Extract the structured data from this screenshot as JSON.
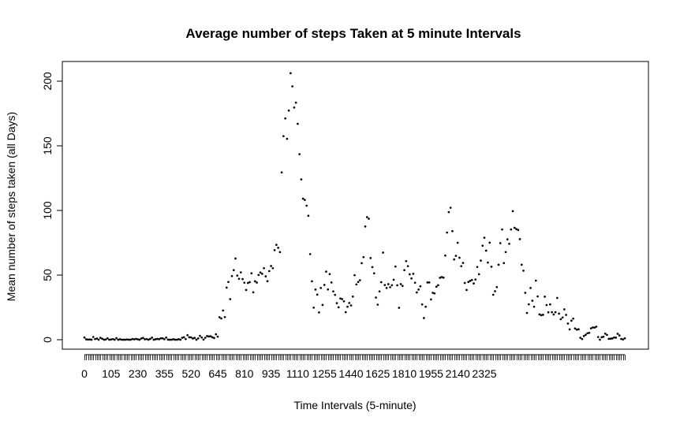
{
  "chart_data": {
    "type": "scatter",
    "title": "Average number of steps Taken at 5 minute Intervals",
    "xlabel": "Time Intervals (5-minute)",
    "ylabel": "Mean number of steps taken (all Days)",
    "x_ticks": [
      "0",
      "105",
      "230",
      "355",
      "520",
      "645",
      "810",
      "935",
      "1110",
      "1255",
      "1440",
      "1625",
      "1810",
      "1955",
      "2140",
      "2325"
    ],
    "y_ticks": [
      0,
      50,
      100,
      150,
      200
    ],
    "ylim": [
      0,
      210
    ],
    "grid": false,
    "legend": "none",
    "marker_color": "#000000",
    "values": [
      1.7,
      0.3,
      0.1,
      0.2,
      0.0,
      2.1,
      0.5,
      0.9,
      0.0,
      1.5,
      0.8,
      0.0,
      0.2,
      1.1,
      0.0,
      0.2,
      0.5,
      0.0,
      1.2,
      0.0,
      0.4,
      0.0,
      0.0,
      0.0,
      0.2,
      0.0,
      0.0,
      0.5,
      0.3,
      0.6,
      0.3,
      0.0,
      0.9,
      1.4,
      0.3,
      0.5,
      0.0,
      0.6,
      1.6,
      0.0,
      0.3,
      0.6,
      0.4,
      1.1,
      1.1,
      0.4,
      1.7,
      0.1,
      0.0,
      0.0,
      0.4,
      0.0,
      0.0,
      0.4,
      0.0,
      1.5,
      1.9,
      0.5,
      3.5,
      1.9,
      1.8,
      0.9,
      1.4,
      0.0,
      1.0,
      3.0,
      1.7,
      0.1,
      1.5,
      2.8,
      2.5,
      2.7,
      1.9,
      1.3,
      4.2,
      2.4,
      17.4,
      16.5,
      22.6,
      17.5,
      40.3,
      44.7,
      31.4,
      49.2,
      53.8,
      62.8,
      49.6,
      47.1,
      52.1,
      46.9,
      44.1,
      38.5,
      43.9,
      44.5,
      51.4,
      36.7,
      45.2,
      44.2,
      50.1,
      52.0,
      51.0,
      55.3,
      49.0,
      45.3,
      53.1,
      57.0,
      55.3,
      69.3,
      73.4,
      71.1,
      67.8,
      129.4,
      157.5,
      171.2,
      155.4,
      177.3,
      206.2,
      196.0,
      179.6,
      183.4,
      167.0,
      143.5,
      124.0,
      109.1,
      108.1,
      103.7,
      95.9,
      66.2,
      45.2,
      24.8,
      38.8,
      34.9,
      21.1,
      40.0,
      26.9,
      42.4,
      52.7,
      38.9,
      50.8,
      44.3,
      37.4,
      34.7,
      28.3,
      25.1,
      31.9,
      31.4,
      29.7,
      21.3,
      25.5,
      28.4,
      26.5,
      33.4,
      49.9,
      42.8,
      44.7,
      46.0,
      59.2,
      63.9,
      87.6,
      94.8,
      93.6,
      63.2,
      56.2,
      51.4,
      32.6,
      27.1,
      37.4,
      44.5,
      67.4,
      42.3,
      40.0,
      43.0,
      40.6,
      42.2,
      46.4,
      56.6,
      42.1,
      24.7,
      43.0,
      41.6,
      53.8,
      60.8,
      56.9,
      50.6,
      47.4,
      51.0,
      44.1,
      36.6,
      38.8,
      41.3,
      27.3,
      16.8,
      25.5,
      44.3,
      44.3,
      31.2,
      36.3,
      35.8,
      41.0,
      42.2,
      47.9,
      48.5,
      48.0,
      65.1,
      82.9,
      98.7,
      102.1,
      84.0,
      62.1,
      64.9,
      75.0,
      63.4,
      56.9,
      59.4,
      43.9,
      38.5,
      44.7,
      45.5,
      46.2,
      43.5,
      46.6,
      56.3,
      50.7,
      61.2,
      72.7,
      78.9,
      68.9,
      59.7,
      75.1,
      56.5,
      34.8,
      37.5,
      40.7,
      58.0,
      74.7,
      85.3,
      59.3,
      67.8,
      77.7,
      74.2,
      85.3,
      99.5,
      86.6,
      85.6,
      84.9,
      77.8,
      58.0,
      53.4,
      36.3,
      20.7,
      27.4,
      40.0,
      30.2,
      25.5,
      45.7,
      33.5,
      19.6,
      19.0,
      19.3,
      33.3,
      26.8,
      21.2,
      27.3,
      21.3,
      19.5,
      21.3,
      32.3,
      20.2,
      15.9,
      17.2,
      23.5,
      19.2,
      12.5,
      8.0,
      14.7,
      16.3,
      8.7,
      7.8,
      8.1,
      1.5,
      0.5,
      2.8,
      3.8,
      5.0,
      5.3,
      8.8,
      9.5,
      9.4,
      10.1,
      2.1,
      0.0,
      1.9,
      2.3,
      4.7,
      3.7,
      0.7,
      0.8,
      1.0,
      1.7,
      1.6,
      4.6,
      3.3,
      0.6,
      0.2,
      1.1
    ]
  }
}
